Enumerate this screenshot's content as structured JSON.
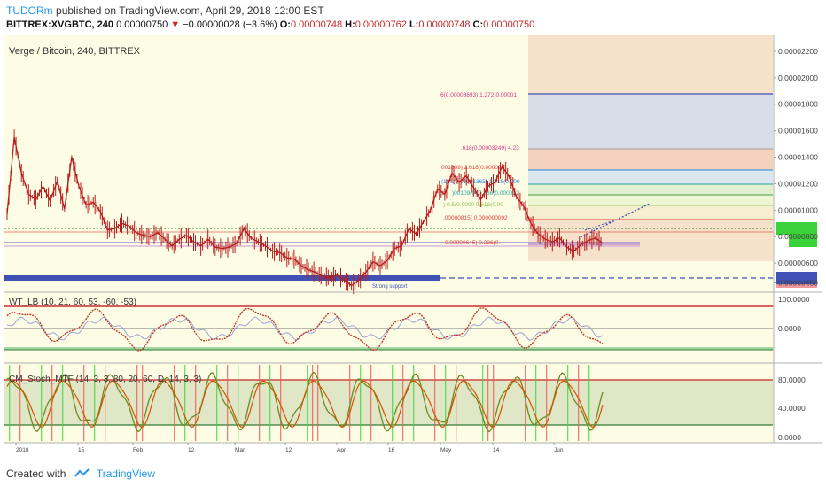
{
  "header": {
    "user": "TUDORm",
    "published_text": "published on TradingView.com, April 29, 2018 12:00 EST",
    "symbol": "BITTREX:XVGBTC, 240",
    "last": "0.00000750",
    "arrow": "▼",
    "change": "−0.00000028 (−3.6%)",
    "o_label": "O:",
    "o_value": "0.00000748",
    "h_label": "H:",
    "h_value": "0.00000762",
    "l_label": "L:",
    "l_value": "0.00000748",
    "c_label": "C:",
    "c_value": "0.00000750"
  },
  "colors": {
    "background": "#fdfde6",
    "candle": "#b71c1c",
    "fib_zone": "#f5dcc6",
    "support_band": "#3f51b5",
    "wt_line": "#c0392b",
    "wt_signal": "#7f8ccf",
    "stoch_k": "#6d8a1f",
    "stoch_d": "#d35400",
    "stoch_band": "#c9d6ad",
    "green_bar": "#39d339",
    "red_bar": "#ef5350",
    "tradingview_blue": "#2196f3"
  },
  "chart_data": [
    {
      "type": "line",
      "title": "Verge / Bitcoin, 240, BITTREX",
      "x_ticks": [
        "2018",
        "15",
        "Feb",
        "12",
        "Mar",
        "12",
        "Apr",
        "16",
        "May",
        "14",
        "Jun"
      ],
      "y_ticks": [
        "0.00002200",
        "0.00002000",
        "0.00001800",
        "0.00001600",
        "0.00001400",
        "0.00001200",
        "0.00001000",
        "0.00000800",
        "0.00000600",
        "0.00000450"
      ],
      "ylim": [
        3.8e-06,
        2.32e-05
      ],
      "close_series": [
        [
          0,
          9.7e-06
        ],
        [
          4,
          1.55e-05
        ],
        [
          8,
          1.28e-05
        ],
        [
          12,
          1.12e-05
        ],
        [
          16,
          1.08e-05
        ],
        [
          20,
          1.18e-05
        ],
        [
          24,
          1.07e-05
        ],
        [
          28,
          1.22e-05
        ],
        [
          32,
          1.01e-05
        ],
        [
          36,
          1.4e-05
        ],
        [
          40,
          1.18e-05
        ],
        [
          44,
          1.04e-05
        ],
        [
          48,
          1.06e-05
        ],
        [
          52,
          9.9e-06
        ],
        [
          56,
          8.5e-06
        ],
        [
          60,
          8.6e-06
        ],
        [
          64,
          9e-06
        ],
        [
          68,
          8.8e-06
        ],
        [
          72,
          8.3e-06
        ],
        [
          76,
          8.1e-06
        ],
        [
          80,
          8e-06
        ],
        [
          84,
          8.3e-06
        ],
        [
          88,
          7.8e-06
        ],
        [
          92,
          7.3e-06
        ],
        [
          96,
          7.8e-06
        ],
        [
          100,
          8.1e-06
        ],
        [
          104,
          7.6e-06
        ],
        [
          108,
          7.3e-06
        ],
        [
          112,
          7.8e-06
        ],
        [
          116,
          7.2e-06
        ],
        [
          120,
          7.1e-06
        ],
        [
          124,
          7.2e-06
        ],
        [
          128,
          7.5e-06
        ],
        [
          132,
          8.6e-06
        ],
        [
          136,
          7.9e-06
        ],
        [
          140,
          7.6e-06
        ],
        [
          144,
          7.3e-06
        ],
        [
          148,
          6.9e-06
        ],
        [
          152,
          6.8e-06
        ],
        [
          156,
          6.4e-06
        ],
        [
          160,
          6.3e-06
        ],
        [
          164,
          5.8e-06
        ],
        [
          168,
          5.5e-06
        ],
        [
          172,
          5.3e-06
        ],
        [
          176,
          5e-06
        ],
        [
          180,
          4.9e-06
        ],
        [
          184,
          5.1e-06
        ],
        [
          188,
          4.7e-06
        ],
        [
          192,
          4.3e-06
        ],
        [
          196,
          4.7e-06
        ],
        [
          200,
          5.3e-06
        ],
        [
          204,
          6.1e-06
        ],
        [
          208,
          5.8e-06
        ],
        [
          212,
          6.2e-06
        ],
        [
          216,
          7.1e-06
        ],
        [
          220,
          7.3e-06
        ],
        [
          224,
          8.6e-06
        ],
        [
          228,
          8.2e-06
        ],
        [
          232,
          9.1e-06
        ],
        [
          236,
          1e-05
        ],
        [
          240,
          1.16e-05
        ],
        [
          244,
          1.12e-05
        ],
        [
          248,
          1.28e-05
        ],
        [
          252,
          1.21e-05
        ],
        [
          256,
          1.26e-05
        ],
        [
          260,
          1.17e-05
        ],
        [
          264,
          1.08e-05
        ],
        [
          268,
          1.18e-05
        ],
        [
          272,
          1.21e-05
        ],
        [
          276,
          1.33e-05
        ],
        [
          280,
          1.25e-05
        ],
        [
          284,
          1.1e-05
        ],
        [
          288,
          1.03e-05
        ],
        [
          292,
          9e-06
        ],
        [
          296,
          8.2e-06
        ],
        [
          300,
          7.8e-06
        ],
        [
          304,
          7.6e-06
        ],
        [
          308,
          7.9e-06
        ],
        [
          312,
          7.2e-06
        ],
        [
          316,
          6.9e-06
        ],
        [
          320,
          7.4e-06
        ],
        [
          324,
          7.7e-06
        ],
        [
          328,
          7.9e-06
        ],
        [
          332,
          7.5e-06
        ]
      ],
      "fib_labels": [
        "6(0.00003693)  1.272(0.00001",
        ".618(0.00003249)  4.23",
        "001809)  2.618(0.00002",
        "(1)  1(0.00001365)  1.218(0.000",
        ")00109(0)  0.786(0.000012",
        ")  0.5(0.0000   0.618(0.00",
        ".00000815(   0.000000092",
        "0.00000645)  0.236(0."
      ],
      "annotation": "Strong support"
    },
    {
      "type": "line",
      "title": "WT_LB (10, 21, 60, 53, -60, -53)",
      "y_ticks": [
        "100.0000",
        "0.0000"
      ]
    },
    {
      "type": "line",
      "title": "CM_Stoch_MTF (14, 3, 3, 80, 20, 60, D, 14, 3, 3)",
      "y_ticks": [
        "80.0000",
        "40.0000",
        "0.0000"
      ]
    }
  ],
  "footer": {
    "created_with": "Created with",
    "brand": "TradingView"
  }
}
